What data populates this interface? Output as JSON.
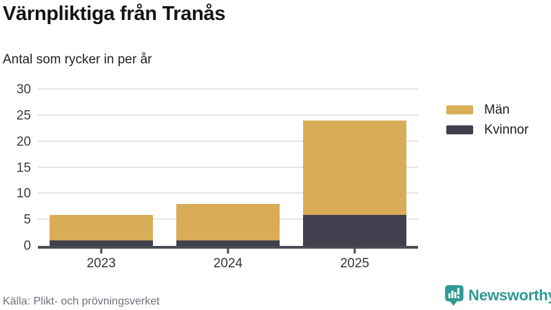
{
  "header": {
    "title": "Värnpliktiga från Tranås",
    "subtitle": "Antal som rycker in per år"
  },
  "chart_data": {
    "type": "bar",
    "stacked": true,
    "title": "Värnpliktiga från Tranås",
    "subtitle": "Antal som rycker in per år",
    "xlabel": "",
    "ylabel": "",
    "categories": [
      "2023",
      "2024",
      "2025"
    ],
    "series": [
      {
        "name": "Män",
        "color": "#D9AC57",
        "values": [
          5,
          7,
          18
        ]
      },
      {
        "name": "Kvinnor",
        "color": "#41404F",
        "values": [
          1,
          1,
          6
        ]
      }
    ],
    "stack_order_bottom_to_top": [
      "Kvinnor",
      "Män"
    ],
    "totals": [
      6,
      8,
      24
    ],
    "ylim": [
      0,
      30
    ],
    "yticks": [
      0,
      5,
      10,
      15,
      20,
      25,
      30
    ],
    "grid": "horizontal",
    "legend_position": "right"
  },
  "footer": {
    "source": "Källa: Plikt- och prövningsverket",
    "brand": "Newsworthy"
  },
  "colors": {
    "men": "#D9AC57",
    "women": "#41404F",
    "axis": "#4B4B54",
    "gridline": "#E5E5E5",
    "brand_teal": "#2F9A93",
    "source_gray": "#70707A"
  },
  "icons": {
    "newsworthy_logo_icon": "speech-bubble-with-bar-chart-and-exclamation"
  }
}
